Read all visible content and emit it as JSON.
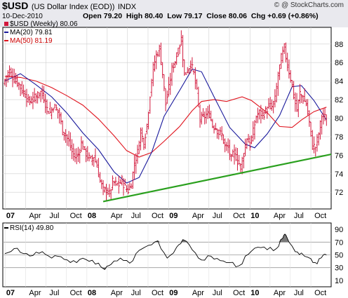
{
  "header": {
    "symbol": "$USD",
    "name": "(US Dollar Index (EOD))",
    "exchange": "INDX",
    "date": "10-Dec-2010",
    "ohlc": "Open 79.20  High 80.40  Low 79.17  Close 80.06  Chg +0.69 (+0.86%)",
    "copyright": "@ StockCharts.com",
    "copyright_mark": "©"
  },
  "legend": {
    "price": "$USD (Weekly) 80.06",
    "ma20": "MA(20) 79.81",
    "ma50": "MA(50) 81.19"
  },
  "rsi_label": "RSI(14) 49.80",
  "x_axis": [
    "07",
    "Apr",
    "Jul",
    "Oct",
    "08",
    "Apr",
    "Jul",
    "Oct",
    "09",
    "Apr",
    "Jul",
    "Oct",
    "10",
    "Apr",
    "Jul",
    "Oct"
  ],
  "colors": {
    "price": "#d2183c",
    "ma20": "#1a1a9c",
    "ma50": "#e0141e",
    "trendline": "#2aa01e",
    "rsi": "#000000",
    "rsi_fill": "#7a7a7a",
    "grid": "#cfcfcf",
    "header_bg": "#e9e9ee"
  },
  "chart_data": [
    {
      "type": "line",
      "title": "$USD (US Dollar Index (EOD)) INDX",
      "y_ticks": [
        72,
        74,
        76,
        78,
        80,
        82,
        84,
        86,
        88
      ],
      "ylim": [
        70.2,
        89.8
      ],
      "x_start": "2007-01",
      "x_end": "2010-12",
      "series": [
        {
          "name": "$USD (Weekly) 80.06",
          "style": "ohlc-bars",
          "points": [
            [
              "2006-12-29",
              83.7
            ],
            [
              "2007-01-12",
              84.6
            ],
            [
              "2007-01-26",
              85.1
            ],
            [
              "2007-02-09",
              84.5
            ],
            [
              "2007-02-23",
              84.0
            ],
            [
              "2007-03-09",
              83.7
            ],
            [
              "2007-03-23",
              83.0
            ],
            [
              "2007-04-06",
              82.6
            ],
            [
              "2007-04-20",
              81.8
            ],
            [
              "2007-05-04",
              81.9
            ],
            [
              "2007-05-18",
              82.2
            ],
            [
              "2007-06-01",
              82.5
            ],
            [
              "2007-06-15",
              82.8
            ],
            [
              "2007-06-29",
              82.2
            ],
            [
              "2007-07-13",
              81.0
            ],
            [
              "2007-07-27",
              80.6
            ],
            [
              "2007-08-10",
              81.3
            ],
            [
              "2007-08-24",
              81.0
            ],
            [
              "2007-09-07",
              80.3
            ],
            [
              "2007-09-21",
              78.6
            ],
            [
              "2007-10-05",
              78.2
            ],
            [
              "2007-10-19",
              77.4
            ],
            [
              "2007-11-02",
              76.4
            ],
            [
              "2007-11-16",
              75.8
            ],
            [
              "2007-11-30",
              76.1
            ],
            [
              "2007-12-14",
              77.3
            ],
            [
              "2007-12-28",
              76.5
            ],
            [
              "2008-01-11",
              75.9
            ],
            [
              "2008-01-25",
              75.5
            ],
            [
              "2008-02-08",
              75.9
            ],
            [
              "2008-02-22",
              74.8
            ],
            [
              "2008-03-07",
              73.2
            ],
            [
              "2008-03-21",
              72.2
            ],
            [
              "2008-04-04",
              72.3
            ],
            [
              "2008-04-18",
              71.8
            ],
            [
              "2008-05-02",
              73.1
            ],
            [
              "2008-05-16",
              72.9
            ],
            [
              "2008-05-30",
              72.8
            ],
            [
              "2008-06-13",
              73.3
            ],
            [
              "2008-06-27",
              72.5
            ],
            [
              "2008-07-11",
              72.2
            ],
            [
              "2008-07-25",
              72.9
            ],
            [
              "2008-08-08",
              75.2
            ],
            [
              "2008-08-22",
              76.3
            ],
            [
              "2008-09-05",
              78.6
            ],
            [
              "2008-09-19",
              77.3
            ],
            [
              "2008-10-03",
              79.3
            ],
            [
              "2008-10-17",
              82.6
            ],
            [
              "2008-10-31",
              85.4
            ],
            [
              "2008-11-14",
              86.8
            ],
            [
              "2008-11-28",
              87.5
            ],
            [
              "2008-12-12",
              84.8
            ],
            [
              "2008-12-26",
              81.5
            ],
            [
              "2009-01-09",
              83.2
            ],
            [
              "2009-01-23",
              85.3
            ],
            [
              "2009-02-06",
              86.2
            ],
            [
              "2009-02-20",
              87.3
            ],
            [
              "2009-03-06",
              88.6
            ],
            [
              "2009-03-20",
              84.6
            ],
            [
              "2009-04-03",
              85.2
            ],
            [
              "2009-04-17",
              85.9
            ],
            [
              "2009-05-01",
              84.8
            ],
            [
              "2009-05-15",
              82.8
            ],
            [
              "2009-05-29",
              79.9
            ],
            [
              "2009-06-12",
              80.1
            ],
            [
              "2009-06-26",
              80.3
            ],
            [
              "2009-07-10",
              80.5
            ],
            [
              "2009-07-24",
              79.2
            ],
            [
              "2009-08-07",
              79.0
            ],
            [
              "2009-08-21",
              78.4
            ],
            [
              "2009-09-04",
              78.2
            ],
            [
              "2009-09-18",
              76.9
            ],
            [
              "2009-10-02",
              76.8
            ],
            [
              "2009-10-16",
              75.6
            ],
            [
              "2009-10-30",
              76.3
            ],
            [
              "2009-11-13",
              75.4
            ],
            [
              "2009-11-27",
              74.8
            ],
            [
              "2009-12-11",
              76.2
            ],
            [
              "2009-12-25",
              77.9
            ],
            [
              "2010-01-08",
              77.1
            ],
            [
              "2010-01-22",
              78.5
            ],
            [
              "2010-02-05",
              80.2
            ],
            [
              "2010-02-19",
              80.6
            ],
            [
              "2010-03-05",
              80.4
            ],
            [
              "2010-03-19",
              80.7
            ],
            [
              "2010-04-02",
              81.3
            ],
            [
              "2010-04-16",
              81.2
            ],
            [
              "2010-04-30",
              82.0
            ],
            [
              "2010-05-14",
              84.6
            ],
            [
              "2010-05-28",
              86.5
            ],
            [
              "2010-06-11",
              87.6
            ],
            [
              "2010-06-25",
              85.7
            ],
            [
              "2010-07-09",
              84.3
            ],
            [
              "2010-07-23",
              82.4
            ],
            [
              "2010-08-06",
              80.8
            ],
            [
              "2010-08-20",
              82.7
            ],
            [
              "2010-09-03",
              82.1
            ],
            [
              "2010-09-17",
              81.5
            ],
            [
              "2010-10-01",
              79.5
            ],
            [
              "2010-10-15",
              77.0
            ],
            [
              "2010-10-29",
              76.9
            ],
            [
              "2010-11-12",
              78.3
            ],
            [
              "2010-11-26",
              80.3
            ],
            [
              "2010-12-10",
              80.06
            ]
          ]
        },
        {
          "name": "MA(20) 79.81",
          "points": [
            [
              "2006-12-29",
              84.0
            ],
            [
              "2007-03-09",
              84.8
            ],
            [
              "2007-05-18",
              83.6
            ],
            [
              "2007-07-27",
              82.3
            ],
            [
              "2007-10-05",
              80.5
            ],
            [
              "2007-12-14",
              78.4
            ],
            [
              "2008-02-22",
              76.6
            ],
            [
              "2008-05-02",
              74.2
            ],
            [
              "2008-06-27",
              73.0
            ],
            [
              "2008-08-22",
              73.6
            ],
            [
              "2008-10-17",
              76.3
            ],
            [
              "2008-12-12",
              80.2
            ],
            [
              "2009-02-20",
              83.0
            ],
            [
              "2009-04-17",
              85.3
            ],
            [
              "2009-05-29",
              85.0
            ],
            [
              "2009-07-24",
              82.3
            ],
            [
              "2009-10-02",
              79.0
            ],
            [
              "2009-12-11",
              77.2
            ],
            [
              "2010-01-22",
              76.8
            ],
            [
              "2010-03-19",
              78.3
            ],
            [
              "2010-05-14",
              80.3
            ],
            [
              "2010-07-09",
              83.4
            ],
            [
              "2010-08-20",
              83.5
            ],
            [
              "2010-10-15",
              81.9
            ],
            [
              "2010-12-10",
              79.81
            ]
          ]
        },
        {
          "name": "MA(50) 81.19",
          "points": [
            [
              "2006-12-29",
              84.5
            ],
            [
              "2007-03-09",
              84.4
            ],
            [
              "2007-05-18",
              84.0
            ],
            [
              "2007-07-27",
              83.3
            ],
            [
              "2007-10-05",
              82.4
            ],
            [
              "2007-12-14",
              81.4
            ],
            [
              "2008-02-22",
              79.9
            ],
            [
              "2008-05-02",
              78.1
            ],
            [
              "2008-06-27",
              76.5
            ],
            [
              "2008-08-22",
              75.8
            ],
            [
              "2008-10-17",
              76.3
            ],
            [
              "2008-12-12",
              77.5
            ],
            [
              "2009-02-20",
              79.1
            ],
            [
              "2009-04-17",
              80.8
            ],
            [
              "2009-05-29",
              81.8
            ],
            [
              "2009-07-24",
              82.0
            ],
            [
              "2009-09-18",
              81.8
            ],
            [
              "2009-11-27",
              82.3
            ],
            [
              "2010-01-08",
              81.9
            ],
            [
              "2010-03-19",
              80.6
            ],
            [
              "2010-05-14",
              79.1
            ],
            [
              "2010-07-09",
              79.0
            ],
            [
              "2010-08-20",
              79.8
            ],
            [
              "2010-10-15",
              80.7
            ],
            [
              "2010-12-10",
              81.19
            ]
          ]
        },
        {
          "name": "trendline",
          "points": [
            [
              "2008-03-14",
              71.0
            ],
            [
              "2010-12-31",
              76.1
            ]
          ]
        }
      ]
    },
    {
      "type": "line",
      "title": "RSI(14) 49.80",
      "y_ticks": [
        10,
        30,
        50,
        70,
        90
      ],
      "ylim": [
        0,
        100
      ],
      "reference_lines": [
        30,
        50,
        70
      ],
      "x_start": "2007-01",
      "x_end": "2010-12",
      "series": [
        {
          "name": "RSI(14) 49.80",
          "points": [
            [
              "2006-12-29",
              52
            ],
            [
              "2007-02-09",
              60
            ],
            [
              "2007-03-23",
              52
            ],
            [
              "2007-05-04",
              49
            ],
            [
              "2007-06-15",
              55
            ],
            [
              "2007-07-27",
              45
            ],
            [
              "2007-09-07",
              47
            ],
            [
              "2007-10-19",
              38
            ],
            [
              "2007-11-30",
              43
            ],
            [
              "2008-01-11",
              40
            ],
            [
              "2008-02-22",
              37
            ],
            [
              "2008-03-21",
              27
            ],
            [
              "2008-04-18",
              35
            ],
            [
              "2008-05-30",
              45
            ],
            [
              "2008-07-11",
              37
            ],
            [
              "2008-08-22",
              57
            ],
            [
              "2008-10-03",
              65
            ],
            [
              "2008-11-14",
              72
            ],
            [
              "2008-12-26",
              45
            ],
            [
              "2009-02-06",
              62
            ],
            [
              "2009-03-06",
              74
            ],
            [
              "2009-04-17",
              58
            ],
            [
              "2009-05-29",
              42
            ],
            [
              "2009-07-10",
              48
            ],
            [
              "2009-08-21",
              41
            ],
            [
              "2009-10-02",
              38
            ],
            [
              "2009-11-13",
              33
            ],
            [
              "2009-12-25",
              51
            ],
            [
              "2010-02-05",
              62
            ],
            [
              "2010-03-19",
              58
            ],
            [
              "2010-04-30",
              60
            ],
            [
              "2010-05-28",
              76
            ],
            [
              "2010-06-11",
              81
            ],
            [
              "2010-07-23",
              55
            ],
            [
              "2010-08-20",
              53
            ],
            [
              "2010-10-01",
              44
            ],
            [
              "2010-10-29",
              36
            ],
            [
              "2010-11-26",
              50
            ],
            [
              "2010-12-10",
              49.8
            ]
          ]
        }
      ]
    }
  ]
}
